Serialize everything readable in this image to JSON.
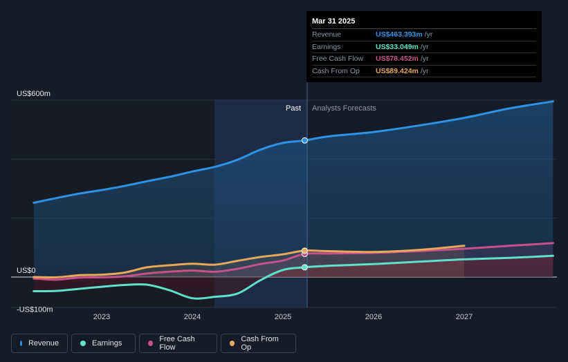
{
  "chart_data": {
    "type": "area",
    "x_ticks": [
      "2023",
      "2024",
      "2025",
      "2026",
      "2027"
    ],
    "y_labels": [
      "US$600m",
      "US$0",
      "-US$100m"
    ],
    "ylim": [
      -100,
      600
    ],
    "past_label": "Past",
    "forecast_label": "Analysts Forecasts",
    "divider_date": "Mar 31 2025",
    "series": [
      {
        "name": "Revenue",
        "color": "#2e93e6",
        "highlight": 463.393,
        "values": [
          [
            2022.25,
            252
          ],
          [
            2022.5,
            268
          ],
          [
            2022.75,
            283
          ],
          [
            2023,
            295
          ],
          [
            2023.25,
            309
          ],
          [
            2023.5,
            325
          ],
          [
            2023.75,
            340
          ],
          [
            2024,
            358
          ],
          [
            2024.25,
            374
          ],
          [
            2024.5,
            398
          ],
          [
            2024.75,
            432
          ],
          [
            2025,
            455
          ],
          [
            2025.24,
            463.393
          ],
          [
            2025.5,
            477
          ],
          [
            2026,
            492
          ],
          [
            2026.5,
            514
          ],
          [
            2027,
            540
          ],
          [
            2027.5,
            572
          ],
          [
            2027.98,
            596
          ]
        ]
      },
      {
        "name": "Earnings",
        "color": "#5fe1cc",
        "highlight": 33.049,
        "values": [
          [
            2022.25,
            -48
          ],
          [
            2022.5,
            -47
          ],
          [
            2022.75,
            -40
          ],
          [
            2023,
            -33
          ],
          [
            2023.25,
            -27
          ],
          [
            2023.5,
            -26
          ],
          [
            2023.75,
            -45
          ],
          [
            2024,
            -72
          ],
          [
            2024.25,
            -67
          ],
          [
            2024.5,
            -56
          ],
          [
            2024.75,
            -11
          ],
          [
            2025,
            24
          ],
          [
            2025.24,
            33.049
          ],
          [
            2025.5,
            38
          ],
          [
            2026,
            44
          ],
          [
            2026.5,
            52
          ],
          [
            2027,
            60
          ],
          [
            2027.5,
            65
          ],
          [
            2027.98,
            72
          ]
        ]
      },
      {
        "name": "Free Cash Flow",
        "color": "#c7528b",
        "highlight": 78.452,
        "values": [
          [
            2022.25,
            -5
          ],
          [
            2022.5,
            -9
          ],
          [
            2022.75,
            -2
          ],
          [
            2023,
            -1
          ],
          [
            2023.25,
            2
          ],
          [
            2023.5,
            12
          ],
          [
            2023.75,
            18
          ],
          [
            2024,
            22
          ],
          [
            2024.25,
            18
          ],
          [
            2024.5,
            28
          ],
          [
            2024.75,
            44
          ],
          [
            2025,
            56
          ],
          [
            2025.24,
            78.452
          ],
          [
            2025.5,
            80
          ],
          [
            2026,
            82
          ],
          [
            2026.5,
            88
          ],
          [
            2027,
            96
          ],
          [
            2027.5,
            106
          ],
          [
            2027.98,
            115
          ]
        ]
      },
      {
        "name": "Cash From Op",
        "color": "#e8a85a",
        "highlight": 89.424,
        "values": [
          [
            2022.25,
            0
          ],
          [
            2022.5,
            -1
          ],
          [
            2022.75,
            6
          ],
          [
            2023,
            8
          ],
          [
            2023.25,
            15
          ],
          [
            2023.5,
            33
          ],
          [
            2023.75,
            40
          ],
          [
            2024,
            45
          ],
          [
            2024.25,
            42
          ],
          [
            2024.5,
            55
          ],
          [
            2024.75,
            68
          ],
          [
            2025,
            77
          ],
          [
            2025.24,
            89.424
          ],
          [
            2025.5,
            88
          ],
          [
            2026,
            85
          ],
          [
            2026.5,
            92
          ],
          [
            2027,
            106
          ]
        ]
      }
    ]
  },
  "tooltip": {
    "date": "Mar 31 2025",
    "unit": "/yr",
    "rows": [
      {
        "name": "Revenue",
        "value": "US$463.393m"
      },
      {
        "name": "Earnings",
        "value": "US$33.049m"
      },
      {
        "name": "Free Cash Flow",
        "value": "US$78.452m"
      },
      {
        "name": "Cash From Op",
        "value": "US$89.424m"
      }
    ]
  },
  "legend": [
    {
      "label": "Revenue"
    },
    {
      "label": "Earnings"
    },
    {
      "label": "Free Cash Flow"
    },
    {
      "label": "Cash From Op"
    }
  ]
}
